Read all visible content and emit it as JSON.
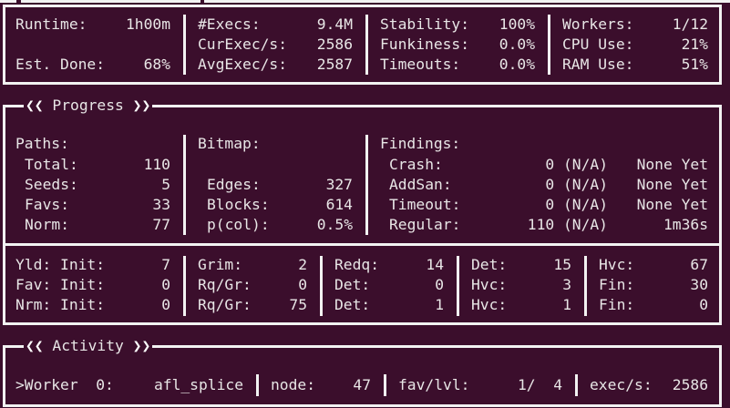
{
  "colors": {
    "background": "#3b0e2c",
    "foreground": "#e8e6e6",
    "border": "#f2f2f2"
  },
  "overview": {
    "runtime": {
      "label": "Runtime:",
      "value": "1h00m"
    },
    "est_done": {
      "label": "Est. Done:",
      "value": "68%"
    },
    "execs": {
      "label": "#Execs:",
      "value": "9.4M"
    },
    "cur_exec": {
      "label": "CurExec/s:",
      "value": "2586"
    },
    "avg_exec": {
      "label": "AvgExec/s:",
      "value": "2587"
    },
    "stability": {
      "label": "Stability:",
      "value": "100%"
    },
    "funkiness": {
      "label": "Funkiness:",
      "value": "0.0%"
    },
    "timeouts": {
      "label": "Timeouts:",
      "value": "0.0%"
    },
    "workers": {
      "label": "Workers:",
      "value": "1/12"
    },
    "cpu": {
      "label": "CPU Use:",
      "value": "21%"
    },
    "ram": {
      "label": "RAM Use:",
      "value": "51%"
    }
  },
  "progress": {
    "title": "Progress",
    "icons": [
      "chevron-double-left-icon",
      "chevron-double-right-icon"
    ],
    "paths": {
      "heading": "Paths:",
      "rows": [
        {
          "label": "Total:",
          "value": "110"
        },
        {
          "label": "Seeds:",
          "value": "5"
        },
        {
          "label": "Favs:",
          "value": "33"
        },
        {
          "label": "Norm:",
          "value": "77"
        }
      ]
    },
    "bitmap": {
      "heading": "Bitmap:",
      "rows": [
        {
          "label": "Edges:",
          "value": "327"
        },
        {
          "label": "Blocks:",
          "value": "614"
        },
        {
          "label": "p(col):",
          "value": "0.5%"
        }
      ]
    },
    "findings": {
      "heading": "Findings:",
      "rows": [
        {
          "label": "Crash:",
          "value": "0 (N/A)",
          "last": "None Yet"
        },
        {
          "label": "AddSan:",
          "value": "0 (N/A)",
          "last": "None Yet"
        },
        {
          "label": "Timeout:",
          "value": "0 (N/A)",
          "last": "None Yet"
        },
        {
          "label": "Regular:",
          "value": "110 (N/A)",
          "last": "1m36s"
        }
      ]
    },
    "stages": [
      [
        {
          "label": "Yld: Init:",
          "value": "7"
        },
        {
          "label": "Grim:",
          "value": "2"
        },
        {
          "label": "Redq:",
          "value": "14"
        },
        {
          "label": "Det:",
          "value": "15"
        },
        {
          "label": "Hvc:",
          "value": "67"
        }
      ],
      [
        {
          "label": "Fav: Init:",
          "value": "0"
        },
        {
          "label": "Rq/Gr:",
          "value": "0"
        },
        {
          "label": "Det:",
          "value": "0"
        },
        {
          "label": "Hvc:",
          "value": "3"
        },
        {
          "label": "Fin:",
          "value": "30"
        }
      ],
      [
        {
          "label": "Nrm: Init:",
          "value": "0"
        },
        {
          "label": "Rq/Gr:",
          "value": "75"
        },
        {
          "label": "Det:",
          "value": "1"
        },
        {
          "label": "Hvc:",
          "value": "1"
        },
        {
          "label": "Fin:",
          "value": "0"
        }
      ]
    ]
  },
  "activity": {
    "title": "Activity",
    "worker": {
      "label": ">Worker  0:",
      "value": "afl_splice"
    },
    "node": {
      "label": "node:",
      "value": "47"
    },
    "fav_lvl": {
      "label": "fav/lvl:",
      "value": "1/  4"
    },
    "exec_s": {
      "label": "exec/s:",
      "value": "2586"
    }
  }
}
